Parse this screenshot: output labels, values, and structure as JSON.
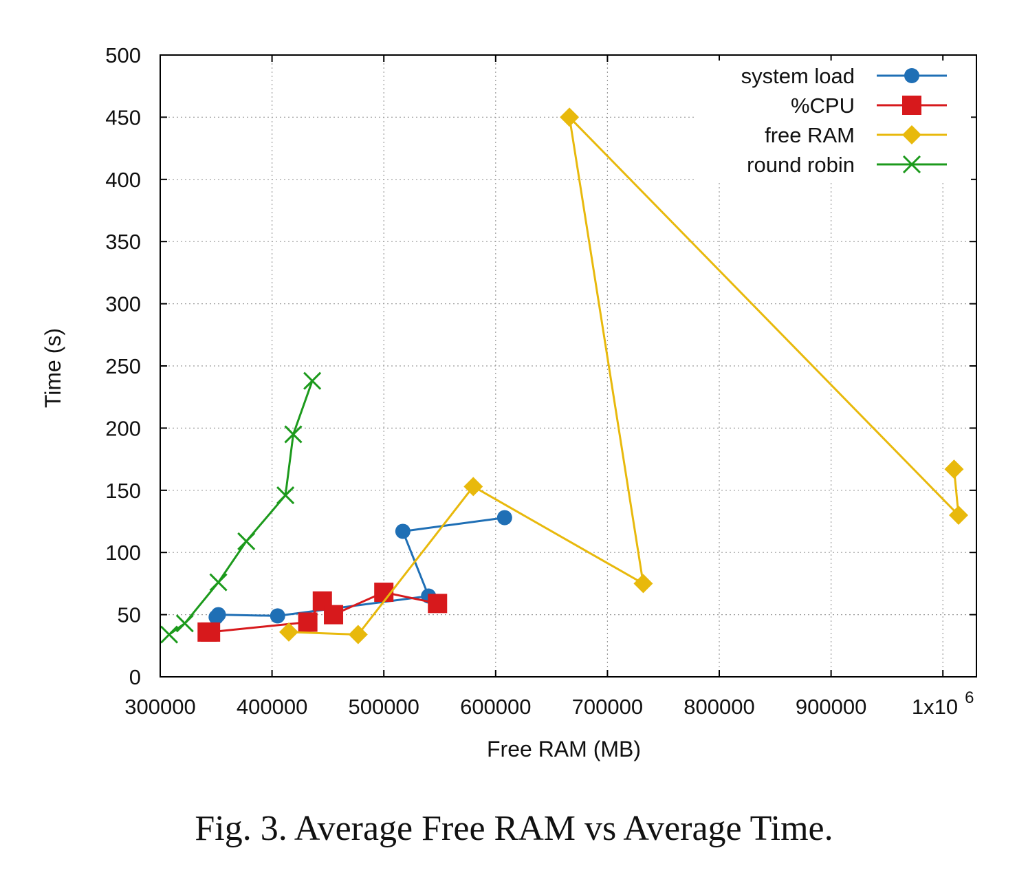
{
  "caption": "Fig. 3.  Average Free RAM vs Average Time.",
  "chart_data": {
    "type": "line",
    "title": "",
    "xlabel": "Free RAM (MB)",
    "ylabel": "Time (s)",
    "xlim": [
      300000,
      1030000
    ],
    "ylim": [
      0,
      500
    ],
    "x_ticks": [
      300000,
      400000,
      500000,
      600000,
      700000,
      800000,
      900000,
      1000000
    ],
    "x_tick_labels": [
      "300000",
      "400000",
      "500000",
      "600000",
      "700000",
      "800000",
      "900000",
      "1x10"
    ],
    "x_tick_last_exponent": "6",
    "y_ticks": [
      0,
      50,
      100,
      150,
      200,
      250,
      300,
      350,
      400,
      450,
      500
    ],
    "y_tick_labels": [
      "0",
      "50",
      "100",
      "150",
      "200",
      "250",
      "300",
      "350",
      "400",
      "450",
      "500"
    ],
    "grid": true,
    "legend_position": "top-right",
    "series": [
      {
        "name": "system load",
        "color": "#1f6fb5",
        "marker": "circle",
        "points": [
          [
            350000,
            48
          ],
          [
            352000,
            50
          ],
          [
            405000,
            49
          ],
          [
            540000,
            65
          ],
          [
            517000,
            117
          ],
          [
            608000,
            128
          ]
        ]
      },
      {
        "name": "%CPU",
        "color": "#d7191c",
        "marker": "square",
        "points": [
          [
            342000,
            36
          ],
          [
            345000,
            36
          ],
          [
            432000,
            44
          ],
          [
            445000,
            61
          ],
          [
            455000,
            50
          ],
          [
            500000,
            68
          ],
          [
            548000,
            59
          ]
        ]
      },
      {
        "name": "free RAM",
        "color": "#e8b90c",
        "marker": "diamond",
        "points": [
          [
            415000,
            36
          ],
          [
            477000,
            34
          ],
          [
            580000,
            153
          ],
          [
            732000,
            75
          ],
          [
            666000,
            450
          ],
          [
            1014000,
            130
          ],
          [
            1010000,
            167
          ]
        ]
      },
      {
        "name": "round robin",
        "color": "#1c9a1c",
        "marker": "x",
        "points": [
          [
            308000,
            34
          ],
          [
            322000,
            43
          ],
          [
            352000,
            76
          ],
          [
            377000,
            109
          ],
          [
            412000,
            146
          ],
          [
            419000,
            195
          ],
          [
            436000,
            238
          ]
        ]
      }
    ]
  }
}
